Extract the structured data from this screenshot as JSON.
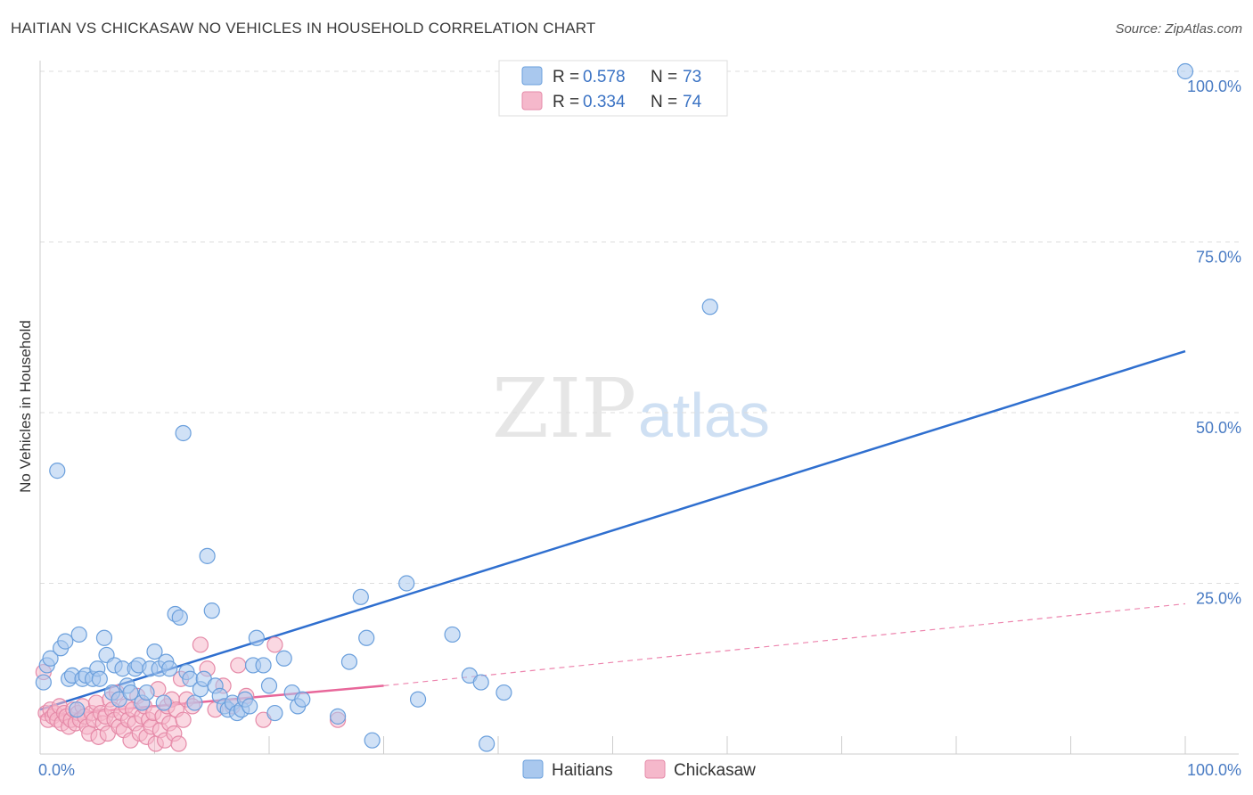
{
  "header": {
    "title": "HAITIAN VS CHICKASAW NO VEHICLES IN HOUSEHOLD CORRELATION CHART",
    "source": "Source: ZipAtlas.com"
  },
  "watermark": {
    "zip": "ZIP",
    "atlas": "atlas"
  },
  "legend": {
    "rows": [
      {
        "r_label": "R =",
        "r_value": "0.578",
        "n_label": "N =",
        "n_value": "73",
        "color": "#a9c8ee"
      },
      {
        "r_label": "R =",
        "r_value": "0.334",
        "n_label": "N =",
        "n_value": "74",
        "color": "#f5b8cb"
      }
    ]
  },
  "colors": {
    "haitians_fill": "#a9c8ee",
    "haitians_stroke": "#6a9fdc",
    "haitians_line": "#2f6fcf",
    "chickasaw_fill": "#f5b8cb",
    "chickasaw_stroke": "#e58aa8",
    "chickasaw_line": "#e8679a",
    "grid": "#dddddd",
    "tick_text": "#4a7cc4"
  },
  "chart_data": {
    "type": "scatter",
    "title": "HAITIAN VS CHICKASAW NO VEHICLES IN HOUSEHOLD CORRELATION CHART",
    "xlabel": "",
    "ylabel": "No Vehicles in Household",
    "xlim": [
      0,
      100
    ],
    "ylim": [
      0,
      100
    ],
    "x_tick_labels": [
      "0.0%",
      "100.0%"
    ],
    "y_tick_labels": [
      {
        "value": 100,
        "label": "100.0%"
      },
      {
        "value": 75,
        "label": "75.0%"
      },
      {
        "value": 50,
        "label": "50.0%"
      },
      {
        "value": 25,
        "label": "25.0%"
      }
    ],
    "series": [
      {
        "name": "Haitians",
        "R": 0.578,
        "N": 73,
        "trend": {
          "x0": 0,
          "y0": 6.5,
          "x1": 100,
          "y1": 59.0,
          "dashed_to": null
        },
        "points": [
          [
            0.3,
            10.5
          ],
          [
            0.6,
            13.0
          ],
          [
            0.9,
            14.0
          ],
          [
            1.5,
            41.5
          ],
          [
            1.8,
            15.5
          ],
          [
            2.2,
            16.5
          ],
          [
            2.5,
            11.0
          ],
          [
            2.8,
            11.5
          ],
          [
            3.2,
            6.5
          ],
          [
            3.4,
            17.5
          ],
          [
            3.7,
            11.0
          ],
          [
            4.0,
            11.5
          ],
          [
            4.6,
            11.0
          ],
          [
            5.0,
            12.5
          ],
          [
            5.2,
            11.0
          ],
          [
            5.6,
            17.0
          ],
          [
            5.8,
            14.5
          ],
          [
            6.3,
            9.0
          ],
          [
            6.5,
            13.0
          ],
          [
            6.9,
            8.0
          ],
          [
            7.2,
            12.5
          ],
          [
            7.6,
            10.0
          ],
          [
            7.9,
            9.0
          ],
          [
            8.3,
            12.5
          ],
          [
            8.6,
            13.0
          ],
          [
            8.9,
            7.5
          ],
          [
            9.3,
            9.0
          ],
          [
            9.6,
            12.5
          ],
          [
            10.0,
            15.0
          ],
          [
            10.4,
            12.5
          ],
          [
            10.8,
            7.5
          ],
          [
            11.0,
            13.5
          ],
          [
            11.3,
            12.5
          ],
          [
            11.8,
            20.5
          ],
          [
            12.2,
            20.0
          ],
          [
            12.5,
            47.0
          ],
          [
            12.8,
            12.0
          ],
          [
            13.1,
            11.0
          ],
          [
            13.5,
            7.5
          ],
          [
            14.0,
            9.5
          ],
          [
            14.3,
            11.0
          ],
          [
            14.6,
            29.0
          ],
          [
            15.0,
            21.0
          ],
          [
            15.3,
            10.0
          ],
          [
            15.7,
            8.5
          ],
          [
            16.1,
            7.0
          ],
          [
            16.4,
            6.5
          ],
          [
            16.8,
            7.5
          ],
          [
            17.2,
            6.0
          ],
          [
            17.6,
            6.5
          ],
          [
            17.9,
            8.0
          ],
          [
            18.3,
            7.0
          ],
          [
            18.6,
            13.0
          ],
          [
            18.9,
            17.0
          ],
          [
            19.5,
            13.0
          ],
          [
            20.0,
            10.0
          ],
          [
            20.5,
            6.0
          ],
          [
            21.3,
            14.0
          ],
          [
            22.0,
            9.0
          ],
          [
            22.5,
            7.0
          ],
          [
            22.9,
            8.0
          ],
          [
            26.0,
            5.5
          ],
          [
            27.0,
            13.5
          ],
          [
            28.0,
            23.0
          ],
          [
            28.5,
            17.0
          ],
          [
            29.0,
            2.0
          ],
          [
            32.0,
            25.0
          ],
          [
            33.0,
            8.0
          ],
          [
            36.0,
            17.5
          ],
          [
            37.5,
            11.5
          ],
          [
            38.5,
            10.5
          ],
          [
            39.0,
            1.5
          ],
          [
            40.5,
            9.0
          ],
          [
            58.5,
            65.5
          ],
          [
            100.0,
            100.0
          ]
        ]
      },
      {
        "name": "Chickasaw",
        "R": 0.334,
        "N": 74,
        "trend": {
          "x0": 0,
          "y0": 5.5,
          "x1": 30,
          "y1": 10.0,
          "dashed_to": {
            "x": 100,
            "y": 22.0
          }
        },
        "points": [
          [
            0.3,
            12.0
          ],
          [
            0.5,
            6.0
          ],
          [
            0.7,
            5.0
          ],
          [
            0.9,
            6.5
          ],
          [
            1.1,
            5.5
          ],
          [
            1.3,
            6.0
          ],
          [
            1.5,
            5.0
          ],
          [
            1.7,
            7.0
          ],
          [
            1.9,
            4.5
          ],
          [
            2.1,
            6.0
          ],
          [
            2.3,
            5.5
          ],
          [
            2.5,
            4.0
          ],
          [
            2.7,
            5.0
          ],
          [
            2.9,
            6.5
          ],
          [
            3.1,
            4.5
          ],
          [
            3.3,
            6.0
          ],
          [
            3.5,
            5.0
          ],
          [
            3.7,
            7.0
          ],
          [
            3.9,
            5.5
          ],
          [
            4.1,
            4.0
          ],
          [
            4.3,
            3.0
          ],
          [
            4.5,
            6.0
          ],
          [
            4.7,
            5.0
          ],
          [
            4.9,
            7.5
          ],
          [
            5.1,
            2.5
          ],
          [
            5.3,
            6.0
          ],
          [
            5.5,
            4.5
          ],
          [
            5.7,
            5.5
          ],
          [
            5.9,
            3.0
          ],
          [
            6.1,
            8.0
          ],
          [
            6.3,
            6.5
          ],
          [
            6.5,
            5.0
          ],
          [
            6.7,
            9.0
          ],
          [
            6.9,
            4.0
          ],
          [
            7.1,
            6.0
          ],
          [
            7.3,
            3.5
          ],
          [
            7.5,
            7.0
          ],
          [
            7.7,
            5.0
          ],
          [
            7.9,
            2.0
          ],
          [
            8.1,
            6.5
          ],
          [
            8.3,
            4.5
          ],
          [
            8.5,
            8.5
          ],
          [
            8.7,
            3.0
          ],
          [
            8.9,
            5.5
          ],
          [
            9.1,
            7.0
          ],
          [
            9.3,
            2.5
          ],
          [
            9.5,
            5.0
          ],
          [
            9.7,
            4.0
          ],
          [
            9.9,
            6.0
          ],
          [
            10.1,
            1.5
          ],
          [
            10.3,
            9.5
          ],
          [
            10.5,
            3.5
          ],
          [
            10.7,
            5.5
          ],
          [
            10.9,
            2.0
          ],
          [
            11.1,
            7.0
          ],
          [
            11.3,
            4.5
          ],
          [
            11.5,
            8.0
          ],
          [
            11.7,
            3.0
          ],
          [
            11.9,
            6.5
          ],
          [
            12.1,
            1.5
          ],
          [
            12.3,
            11.0
          ],
          [
            12.5,
            5.0
          ],
          [
            12.8,
            8.0
          ],
          [
            13.3,
            7.0
          ],
          [
            14.0,
            16.0
          ],
          [
            14.6,
            12.5
          ],
          [
            15.3,
            6.5
          ],
          [
            16.0,
            10.0
          ],
          [
            16.8,
            7.0
          ],
          [
            17.3,
            13.0
          ],
          [
            18.0,
            8.5
          ],
          [
            19.5,
            5.0
          ],
          [
            20.5,
            16.0
          ],
          [
            26.0,
            5.0
          ]
        ]
      }
    ]
  },
  "bottom_legend": {
    "items": [
      {
        "label": "Haitians"
      },
      {
        "label": "Chickasaw"
      }
    ]
  }
}
